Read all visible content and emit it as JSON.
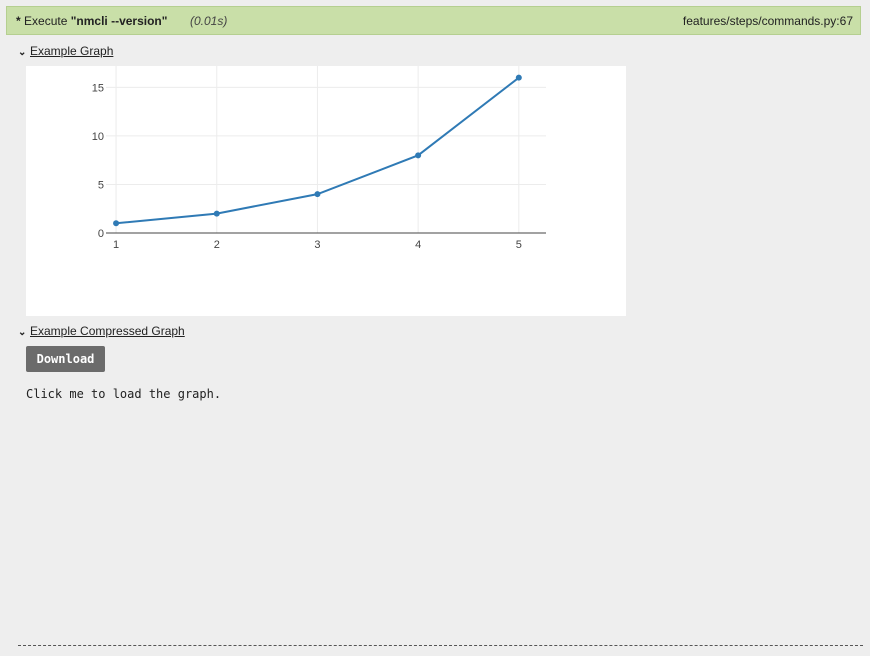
{
  "step": {
    "marker": "*",
    "keyword": "Execute",
    "command": "\"nmcli --version\"",
    "duration": "(0.01s)",
    "location": "features/steps/commands.py:67"
  },
  "sections": {
    "graph_title": "Example Graph",
    "compressed_title": "Example Compressed Graph"
  },
  "download": {
    "label": "Download",
    "hint": "Click me to load the graph."
  },
  "colors": {
    "line": "#2f7ab5",
    "header_bg": "#c9dfa8"
  },
  "chart_data": {
    "type": "line",
    "x": [
      1,
      2,
      3,
      4,
      5
    ],
    "series": [
      {
        "values": [
          1,
          2,
          4,
          8,
          16
        ]
      }
    ],
    "xticks": [
      1,
      2,
      3,
      4,
      5
    ],
    "yticks": [
      0,
      5,
      10,
      15
    ],
    "xlim": [
      0.9,
      5.27
    ],
    "ylim": [
      0,
      17.2
    ],
    "grid": true,
    "title": "",
    "xlabel": "",
    "ylabel": ""
  }
}
